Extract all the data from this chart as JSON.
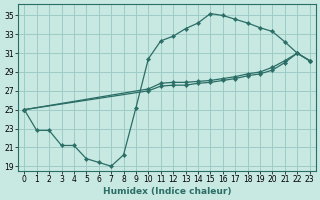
{
  "xlabel": "Humidex (Indice chaleur)",
  "bg_color": "#c8e8e2",
  "grid_color": "#9eccc6",
  "line_color": "#2a6e66",
  "xlim": [
    -0.5,
    23.5
  ],
  "ylim": [
    18.5,
    36.2
  ],
  "yticks": [
    19,
    21,
    23,
    25,
    27,
    29,
    31,
    33,
    35
  ],
  "xticks": [
    0,
    1,
    2,
    3,
    4,
    5,
    6,
    7,
    8,
    9,
    10,
    11,
    12,
    13,
    14,
    15,
    16,
    17,
    18,
    19,
    20,
    21,
    22,
    23
  ],
  "line_jagged_x": [
    0,
    1,
    2,
    3,
    4,
    5,
    6,
    7,
    8,
    9,
    10,
    11,
    12,
    13,
    14,
    15,
    16,
    17,
    18,
    19,
    20,
    21,
    22,
    23
  ],
  "line_jagged_y": [
    25,
    22.8,
    22.8,
    21.2,
    21.2,
    19.8,
    19.4,
    19.0,
    20.2,
    25.2,
    30.4,
    32.3,
    32.8,
    33.6,
    34.2,
    35.2,
    35.0,
    34.6,
    34.2,
    33.7,
    33.3,
    32.2,
    31.0,
    30.2
  ],
  "line_diag1_x": [
    0,
    10,
    11,
    12,
    13,
    14,
    15,
    16,
    17,
    18,
    19,
    20,
    21,
    22,
    23
  ],
  "line_diag1_y": [
    25,
    27.2,
    27.8,
    27.9,
    27.9,
    28.0,
    28.1,
    28.3,
    28.5,
    28.8,
    29.0,
    29.5,
    30.2,
    31.0,
    30.2
  ],
  "line_diag2_x": [
    0,
    10,
    11,
    12,
    13,
    14,
    15,
    16,
    17,
    18,
    19,
    20,
    21,
    22,
    23
  ],
  "line_diag2_y": [
    25,
    27.0,
    27.5,
    27.6,
    27.6,
    27.8,
    27.9,
    28.1,
    28.3,
    28.6,
    28.8,
    29.2,
    30.0,
    31.0,
    30.2
  ]
}
